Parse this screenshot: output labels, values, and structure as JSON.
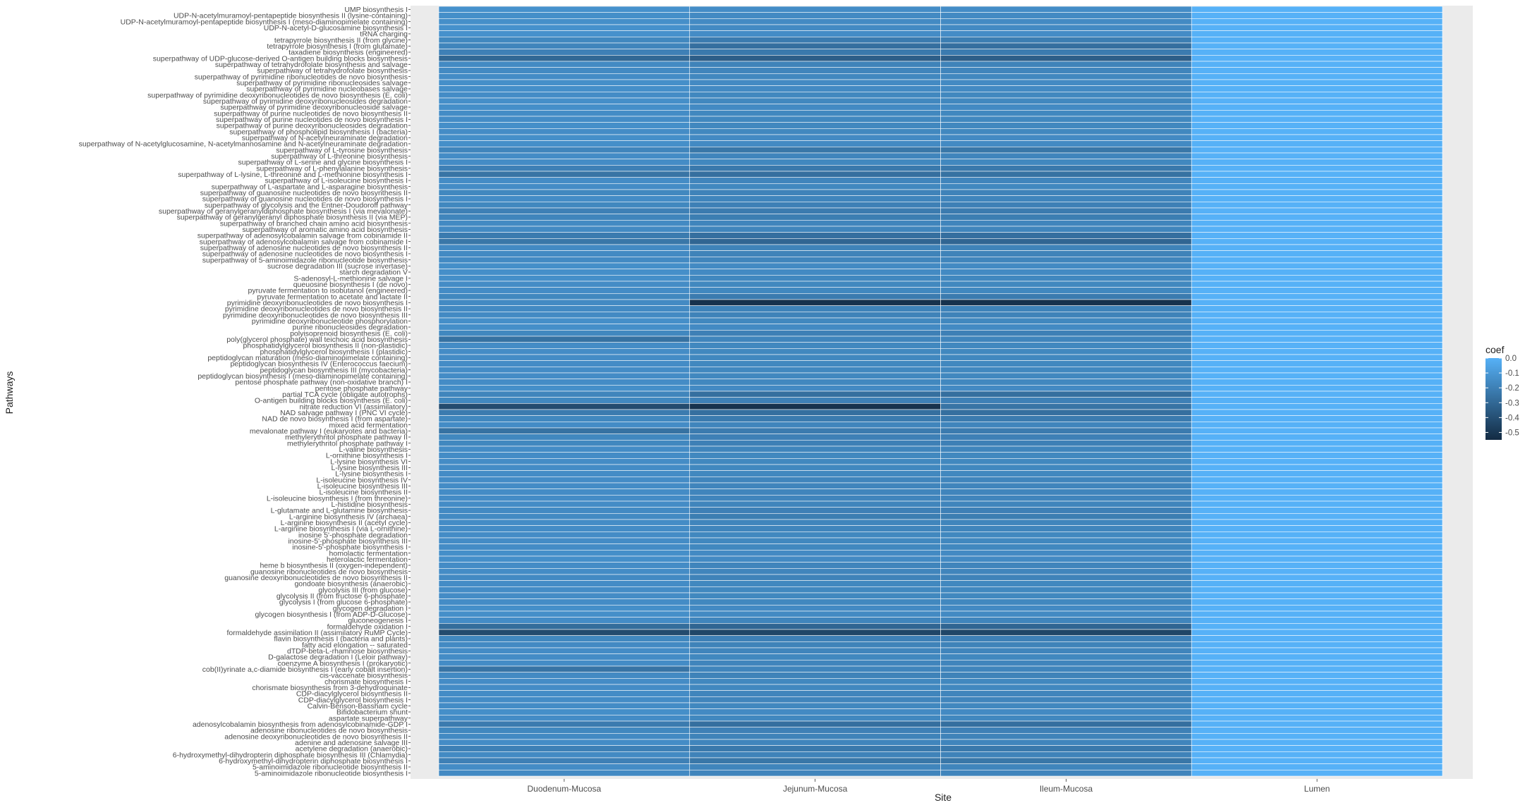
{
  "chart_data": {
    "type": "heatmap",
    "xlabel": "Site",
    "ylabel": "Pathways",
    "x_categories": [
      "Duodenum-Mucosa",
      "Jejunum-Mucosa",
      "Ileum-Mucosa",
      "Lumen"
    ],
    "y_categories": [
      "UMP biosynthesis I",
      "UDP-N-acetylmuramoyl-pentapeptide biosynthesis II (lysine-containing)",
      "UDP-N-acetylmuramoyl-pentapeptide biosynthesis I (meso-diaminopimelate containing)",
      "UDP-N-acetyl-D-glucosamine biosynthesis I",
      "tRNA charging",
      "tetrapyrrole biosynthesis II (from glycine)",
      "tetrapyrrole biosynthesis I (from glutamate)",
      "taxadiene biosynthesis (engineered)",
      "superpathway of UDP-glucose-derived O-antigen building blocks biosynthesis",
      "superpathway of tetrahydrofolate biosynthesis and salvage",
      "superpathway of tetrahydrofolate biosynthesis",
      "superpathway of pyrimidine ribonucleotides de novo biosynthesis",
      "superpathway of pyrimidine ribonucleosides salvage",
      "superpathway of pyrimidine nucleobases salvage",
      "superpathway of pyrimidine deoxyribonucleotides de novo biosynthesis (E. coli)",
      "superpathway of pyrimidine deoxyribonucleosides degradation",
      "superpathway of pyrimidine deoxyribonucleoside salvage",
      "superpathway of purine nucleotides de novo biosynthesis II",
      "superpathway of purine nucleotides de novo biosynthesis I",
      "superpathway of purine deoxyribonucleosides degradation",
      "superpathway of phospholipid biosynthesis I (bacteria)",
      "superpathway of N-acetylneuraminate degradation",
      "superpathway of N-acetylglucosamine, N-acetylmannosamine and N-acetylneuraminate degradation",
      "superpathway of L-tyrosine biosynthesis",
      "superpathway of L-threonine biosynthesis",
      "superpathway of L-serine and glycine biosynthesis I",
      "superpathway of L-phenylalanine biosynthesis",
      "superpathway of L-lysine, L-threonine and L-methionine biosynthesis I",
      "superpathway of L-isoleucine biosynthesis I",
      "superpathway of L-aspartate and L-asparagine biosynthesis",
      "superpathway of guanosine nucleotides de novo biosynthesis II",
      "superpathway of guanosine nucleotides de novo biosynthesis I",
      "superpathway of glycolysis and the Entner-Doudoroff pathway",
      "superpathway of geranylgeranyldiphosphate biosynthesis I (via mevalonate)",
      "superpathway of geranylgeranyl diphosphate biosynthesis II (via MEP)",
      "superpathway of branched chain amino acid biosynthesis",
      "superpathway of aromatic amino acid biosynthesis",
      "superpathway of adenosylcobalamin salvage from cobinamide II",
      "superpathway of adenosylcobalamin salvage from cobinamide I",
      "superpathway of adenosine nucleotides de novo biosynthesis II",
      "superpathway of adenosine nucleotides de novo biosynthesis I",
      "superpathway of 5-aminoimidazole ribonucleotide biosynthesis",
      "sucrose degradation III (sucrose invertase)",
      "starch degradation V",
      "S-adenosyl-L-methionine salvage I",
      "queuosine biosynthesis I (de novo)",
      "pyruvate fermentation to isobutanol (engineered)",
      "pyruvate fermentation to acetate and lactate II",
      "pyrimidine deoxyribonucleotides de novo biosynthesis I",
      "pyrimidine deoxyribonucleotides de novo biosynthesis II",
      "pyrimidine deoxyribonucleotides de novo biosynthesis III",
      "pyrimidine deoxyribonucleotide phosphorylation",
      "purine ribonucleosides degradation",
      "polyisoprenoid biosynthesis (E. coli)",
      "poly(glycerol phosphate) wall teichoic acid biosynthesis",
      "phosphatidylglycerol biosynthesis II (non-plastidic)",
      "phosphatidylglycerol biosynthesis I (plastidic)",
      "peptidoglycan maturation (meso-diaminopimelate containing)",
      "peptidoglycan biosynthesis IV (Enterococcus faecium)",
      "peptidoglycan biosynthesis III (mycobacteria)",
      "peptidoglycan biosynthesis I (meso-diaminopimelate containing)",
      "pentose phosphate pathway (non-oxidative branch) I",
      "pentose phosphate pathway",
      "partial TCA cycle (obligate autotrophs)",
      "O-antigen building blocks biosynthesis (E. coli)",
      "nitrate reduction VI (assimilatory)",
      "NAD salvage pathway I (PNC VI cycle)",
      "NAD de novo biosynthesis I (from aspartate)",
      "mixed acid fermentation",
      "mevalonate pathway I (eukaryotes and bacteria)",
      "methylerythritol phosphate pathway II",
      "methylerythritol phosphate pathway I",
      "L-valine biosynthesis",
      "L-ornithine biosynthesis I",
      "L-lysine biosynthesis VI",
      "L-lysine biosynthesis III",
      "L-lysine biosynthesis I",
      "L-isoleucine biosynthesis IV",
      "L-isoleucine biosynthesis III",
      "L-isoleucine biosynthesis II",
      "L-isoleucine biosynthesis I (from threonine)",
      "L-histidine biosynthesis",
      "L-glutamate and L-glutamine biosynthesis",
      "L-arginine biosynthesis IV (archaea)",
      "L-arginine biosynthesis II (acetyl cycle)",
      "L-arginine biosynthesis I (via L-ornithine)",
      "inosine 5'-phosphate degradation",
      "inosine-5'-phosphate biosynthesis III",
      "inosine-5'-phosphate biosynthesis I",
      "homolactic fermentation",
      "heterolactic fermentation",
      "heme b biosynthesis II (oxygen-independent)",
      "guanosine ribonucleotides de novo biosynthesis",
      "guanosine deoxyribonucleotides de novo biosynthesis II",
      "gondoate biosynthesis (anaerobic)",
      "glycolysis III (from glucose)",
      "glycolysis II (from fructose 6-phosphate)",
      "glycolysis I (from glucose 6-phosphate)",
      "glycogen degradation I",
      "glycogen biosynthesis I (from ADP-D-Glucose)",
      "gluconeogenesis I",
      "formaldehyde oxidation I",
      "formaldehyde assimilation II (assimilatory RuMP Cycle)",
      "flavin biosynthesis I (bacteria and plants)",
      "fatty acid elongation -- saturated",
      "dTDP-beta-L-rhamnose biosynthesis",
      "D-galactose degradation I (Leloir pathway)",
      "coenzyme A biosynthesis I (prokaryotic)",
      "cob(II)yrinate a,c-diamide biosynthesis I (early cobalt insertion)",
      "cis-vaccenate biosynthesis",
      "chorismate biosynthesis I",
      "chorismate biosynthesis from 3-dehydroquinate",
      "CDP-diacylglycerol biosynthesis II",
      "CDP-diacylglycerol biosynthesis I",
      "Calvin-Benson-Bassham cycle",
      "Bifidobacterium shunt",
      "aspartate superpathway",
      "adenosylcobalamin biosynthesis from adenosylcobinamide-GDP I",
      "adenosine ribonucleotides de novo biosynthesis",
      "adenosine deoxyribonucleotides de novo biosynthesis II",
      "adenine and adenosine salvage III",
      "acetylene degradation (anaerobic)",
      "6-hydroxymethyl-dihydropterin diphosphate biosynthesis III (Chlamydia)",
      "6-hydroxymethyl-dihydropterin diphosphate biosynthesis I",
      "5-aminoimidazole ribonucleotide biosynthesis II",
      "5-aminoimidazole ribonucleotide biosynthesis I"
    ],
    "values": [
      [
        -0.13,
        -0.15,
        -0.15,
        0.0
      ],
      [
        -0.14,
        -0.16,
        -0.16,
        0.0
      ],
      [
        -0.14,
        -0.16,
        -0.16,
        0.0
      ],
      [
        -0.13,
        -0.16,
        -0.16,
        0.0
      ],
      [
        -0.13,
        -0.15,
        -0.15,
        0.0
      ],
      [
        -0.17,
        -0.22,
        -0.21,
        0.0
      ],
      [
        -0.18,
        -0.27,
        -0.27,
        0.0
      ],
      [
        -0.2,
        -0.23,
        -0.22,
        0.0
      ],
      [
        -0.3,
        -0.34,
        -0.34,
        0.0
      ],
      [
        -0.16,
        -0.19,
        -0.19,
        0.0
      ],
      [
        -0.16,
        -0.18,
        -0.18,
        0.0
      ],
      [
        -0.15,
        -0.17,
        -0.17,
        0.0
      ],
      [
        -0.14,
        -0.16,
        -0.16,
        0.0
      ],
      [
        -0.14,
        -0.16,
        -0.16,
        0.0
      ],
      [
        -0.15,
        -0.17,
        -0.17,
        0.0
      ],
      [
        -0.14,
        -0.17,
        -0.17,
        0.0
      ],
      [
        -0.14,
        -0.16,
        -0.16,
        0.0
      ],
      [
        -0.15,
        -0.17,
        -0.17,
        0.0
      ],
      [
        -0.15,
        -0.17,
        -0.17,
        0.0
      ],
      [
        -0.14,
        -0.17,
        -0.17,
        0.0
      ],
      [
        -0.15,
        -0.17,
        -0.17,
        0.0
      ],
      [
        -0.14,
        -0.16,
        -0.16,
        0.0
      ],
      [
        -0.14,
        -0.16,
        -0.16,
        0.0
      ],
      [
        -0.18,
        -0.24,
        -0.24,
        0.0
      ],
      [
        -0.15,
        -0.18,
        -0.18,
        0.0
      ],
      [
        -0.15,
        -0.17,
        -0.17,
        0.0
      ],
      [
        -0.2,
        -0.23,
        -0.23,
        0.0
      ],
      [
        -0.25,
        -0.27,
        -0.26,
        0.0
      ],
      [
        -0.15,
        -0.18,
        -0.18,
        0.0
      ],
      [
        -0.15,
        -0.17,
        -0.17,
        0.0
      ],
      [
        -0.17,
        -0.19,
        -0.19,
        0.0
      ],
      [
        -0.15,
        -0.18,
        -0.18,
        0.0
      ],
      [
        -0.17,
        -0.2,
        -0.2,
        0.0
      ],
      [
        -0.2,
        -0.22,
        -0.22,
        0.0
      ],
      [
        -0.18,
        -0.21,
        -0.21,
        0.0
      ],
      [
        -0.16,
        -0.18,
        -0.18,
        0.0
      ],
      [
        -0.16,
        -0.18,
        -0.18,
        0.0
      ],
      [
        -0.22,
        -0.27,
        -0.27,
        0.0
      ],
      [
        -0.24,
        -0.31,
        -0.31,
        0.0
      ],
      [
        -0.16,
        -0.19,
        -0.19,
        0.0
      ],
      [
        -0.16,
        -0.19,
        -0.19,
        0.0
      ],
      [
        -0.16,
        -0.18,
        -0.18,
        0.0
      ],
      [
        -0.14,
        -0.16,
        -0.16,
        0.0
      ],
      [
        -0.14,
        -0.16,
        -0.16,
        0.0
      ],
      [
        -0.14,
        -0.17,
        -0.17,
        0.0
      ],
      [
        -0.15,
        -0.17,
        -0.17,
        0.0
      ],
      [
        -0.15,
        -0.17,
        -0.17,
        0.0
      ],
      [
        -0.17,
        -0.22,
        -0.22,
        0.0
      ],
      [
        -0.16,
        -0.52,
        -0.52,
        0.0
      ],
      [
        -0.16,
        -0.19,
        -0.19,
        0.0
      ],
      [
        -0.16,
        -0.19,
        -0.19,
        0.0
      ],
      [
        -0.14,
        -0.17,
        -0.17,
        0.0
      ],
      [
        -0.14,
        -0.16,
        -0.16,
        0.0
      ],
      [
        -0.17,
        -0.2,
        -0.2,
        0.0
      ],
      [
        -0.26,
        -0.18,
        -0.18,
        0.0
      ],
      [
        -0.15,
        -0.17,
        -0.17,
        0.0
      ],
      [
        -0.15,
        -0.17,
        -0.17,
        0.0
      ],
      [
        -0.15,
        -0.17,
        -0.17,
        0.0
      ],
      [
        -0.15,
        -0.17,
        -0.17,
        0.0
      ],
      [
        -0.15,
        -0.17,
        -0.17,
        0.0
      ],
      [
        -0.15,
        -0.17,
        -0.17,
        0.0
      ],
      [
        -0.15,
        -0.17,
        -0.17,
        0.0
      ],
      [
        -0.14,
        -0.16,
        -0.16,
        0.0
      ],
      [
        -0.18,
        -0.27,
        -0.27,
        0.0
      ],
      [
        -0.17,
        -0.2,
        -0.2,
        0.0
      ],
      [
        -0.42,
        -0.52,
        -0.25,
        0.0
      ],
      [
        -0.22,
        -0.27,
        -0.27,
        0.0
      ],
      [
        -0.17,
        -0.22,
        -0.22,
        0.0
      ],
      [
        -0.15,
        -0.18,
        -0.18,
        0.0
      ],
      [
        -0.26,
        -0.22,
        -0.22,
        0.0
      ],
      [
        -0.17,
        -0.2,
        -0.2,
        0.0
      ],
      [
        -0.17,
        -0.2,
        -0.2,
        0.0
      ],
      [
        -0.15,
        -0.18,
        -0.18,
        0.0
      ],
      [
        -0.15,
        -0.17,
        -0.17,
        0.0
      ],
      [
        -0.15,
        -0.17,
        -0.17,
        0.0
      ],
      [
        -0.15,
        -0.17,
        -0.17,
        0.0
      ],
      [
        -0.15,
        -0.17,
        -0.17,
        0.0
      ],
      [
        -0.15,
        -0.18,
        -0.18,
        0.0
      ],
      [
        -0.15,
        -0.18,
        -0.18,
        0.0
      ],
      [
        -0.15,
        -0.18,
        -0.18,
        0.0
      ],
      [
        -0.15,
        -0.18,
        -0.18,
        0.0
      ],
      [
        -0.15,
        -0.18,
        -0.18,
        0.0
      ],
      [
        -0.16,
        -0.2,
        -0.2,
        0.0
      ],
      [
        -0.16,
        -0.21,
        -0.21,
        0.0
      ],
      [
        -0.15,
        -0.18,
        -0.18,
        0.0
      ],
      [
        -0.15,
        -0.18,
        -0.18,
        0.0
      ],
      [
        -0.15,
        -0.17,
        -0.17,
        0.0
      ],
      [
        -0.15,
        -0.17,
        -0.17,
        0.0
      ],
      [
        -0.15,
        -0.17,
        -0.17,
        0.0
      ],
      [
        -0.14,
        -0.16,
        -0.16,
        0.0
      ],
      [
        -0.14,
        -0.16,
        -0.16,
        0.0
      ],
      [
        -0.15,
        -0.18,
        -0.18,
        0.0
      ],
      [
        -0.15,
        -0.18,
        -0.18,
        0.0
      ],
      [
        -0.16,
        -0.19,
        -0.19,
        0.0
      ],
      [
        -0.15,
        -0.17,
        -0.17,
        0.0
      ],
      [
        -0.15,
        -0.17,
        -0.17,
        0.0
      ],
      [
        -0.15,
        -0.17,
        -0.17,
        0.0
      ],
      [
        -0.15,
        -0.17,
        -0.17,
        0.0
      ],
      [
        -0.14,
        -0.16,
        -0.16,
        0.0
      ],
      [
        -0.14,
        -0.16,
        -0.16,
        0.0
      ],
      [
        -0.15,
        -0.18,
        -0.18,
        0.0
      ],
      [
        -0.28,
        -0.31,
        -0.31,
        0.0
      ],
      [
        -0.42,
        -0.44,
        -0.44,
        0.0
      ],
      [
        -0.17,
        -0.2,
        -0.2,
        0.0
      ],
      [
        -0.16,
        -0.19,
        -0.19,
        0.0
      ],
      [
        -0.15,
        -0.18,
        -0.18,
        0.0
      ],
      [
        -0.15,
        -0.17,
        -0.17,
        0.0
      ],
      [
        -0.15,
        -0.18,
        -0.18,
        0.0
      ],
      [
        -0.25,
        -0.18,
        -0.18,
        0.0
      ],
      [
        -0.16,
        -0.19,
        -0.19,
        0.0
      ],
      [
        -0.15,
        -0.17,
        -0.17,
        0.0
      ],
      [
        -0.15,
        -0.17,
        -0.17,
        0.0
      ],
      [
        -0.15,
        -0.18,
        -0.18,
        0.0
      ],
      [
        -0.15,
        -0.18,
        -0.18,
        0.0
      ],
      [
        -0.15,
        -0.17,
        -0.17,
        0.0
      ],
      [
        -0.14,
        -0.16,
        -0.16,
        0.0
      ],
      [
        -0.15,
        -0.17,
        -0.17,
        0.0
      ],
      [
        -0.22,
        -0.27,
        -0.27,
        0.0
      ],
      [
        -0.17,
        -0.2,
        -0.2,
        0.0
      ],
      [
        -0.16,
        -0.19,
        -0.19,
        0.0
      ],
      [
        -0.15,
        -0.18,
        -0.18,
        0.0
      ],
      [
        -0.2,
        -0.23,
        -0.23,
        0.0
      ],
      [
        -0.16,
        -0.19,
        -0.19,
        0.0
      ],
      [
        -0.2,
        -0.24,
        -0.24,
        0.0
      ],
      [
        -0.15,
        -0.18,
        -0.18,
        0.0
      ],
      [
        -0.16,
        -0.18,
        -0.18,
        0.0
      ]
    ],
    "legend": {
      "title": "coef",
      "position": "right",
      "ticks": [
        0.0,
        -0.1,
        -0.2,
        -0.3,
        -0.4,
        -0.5
      ],
      "tick_labels": [
        "0.0",
        "-0.1",
        "-0.2",
        "-0.3",
        "-0.4",
        "-0.5"
      ],
      "range": [
        -0.55,
        0.0
      ],
      "low_color": "#132B43",
      "high_color": "#56B1F7"
    },
    "panel_background": "#EBEBEB",
    "cell_border_color": "#FFFFFF",
    "grid": true
  }
}
